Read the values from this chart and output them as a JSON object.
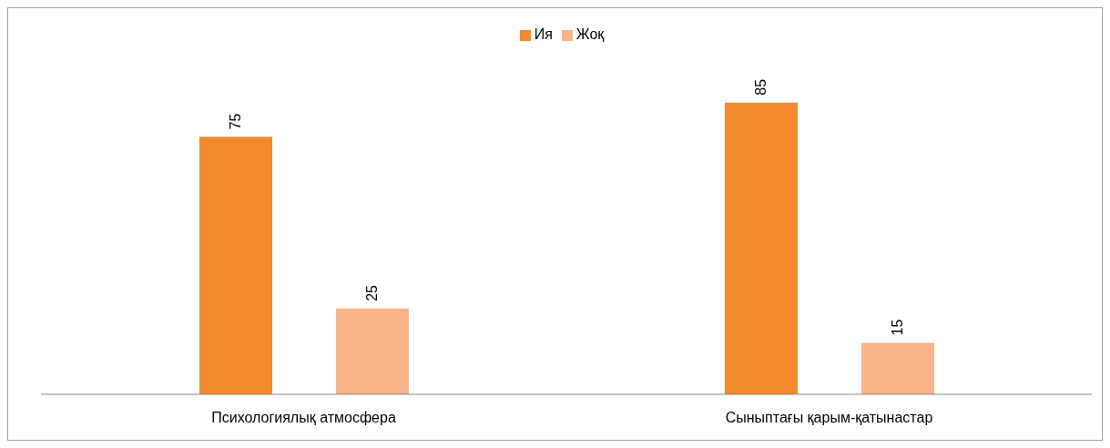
{
  "chart_data": {
    "type": "bar",
    "categories": [
      "Психологиялық атмосфера",
      "Сыныптағы қарым-қатынастар"
    ],
    "series": [
      {
        "name": "Ия",
        "color": "#f28a2e",
        "values": [
          75,
          85
        ]
      },
      {
        "name": "Жоқ",
        "color": "#f9b48a",
        "values": [
          25,
          15
        ]
      }
    ],
    "data_labels": true,
    "legend": "top",
    "grid": false
  }
}
